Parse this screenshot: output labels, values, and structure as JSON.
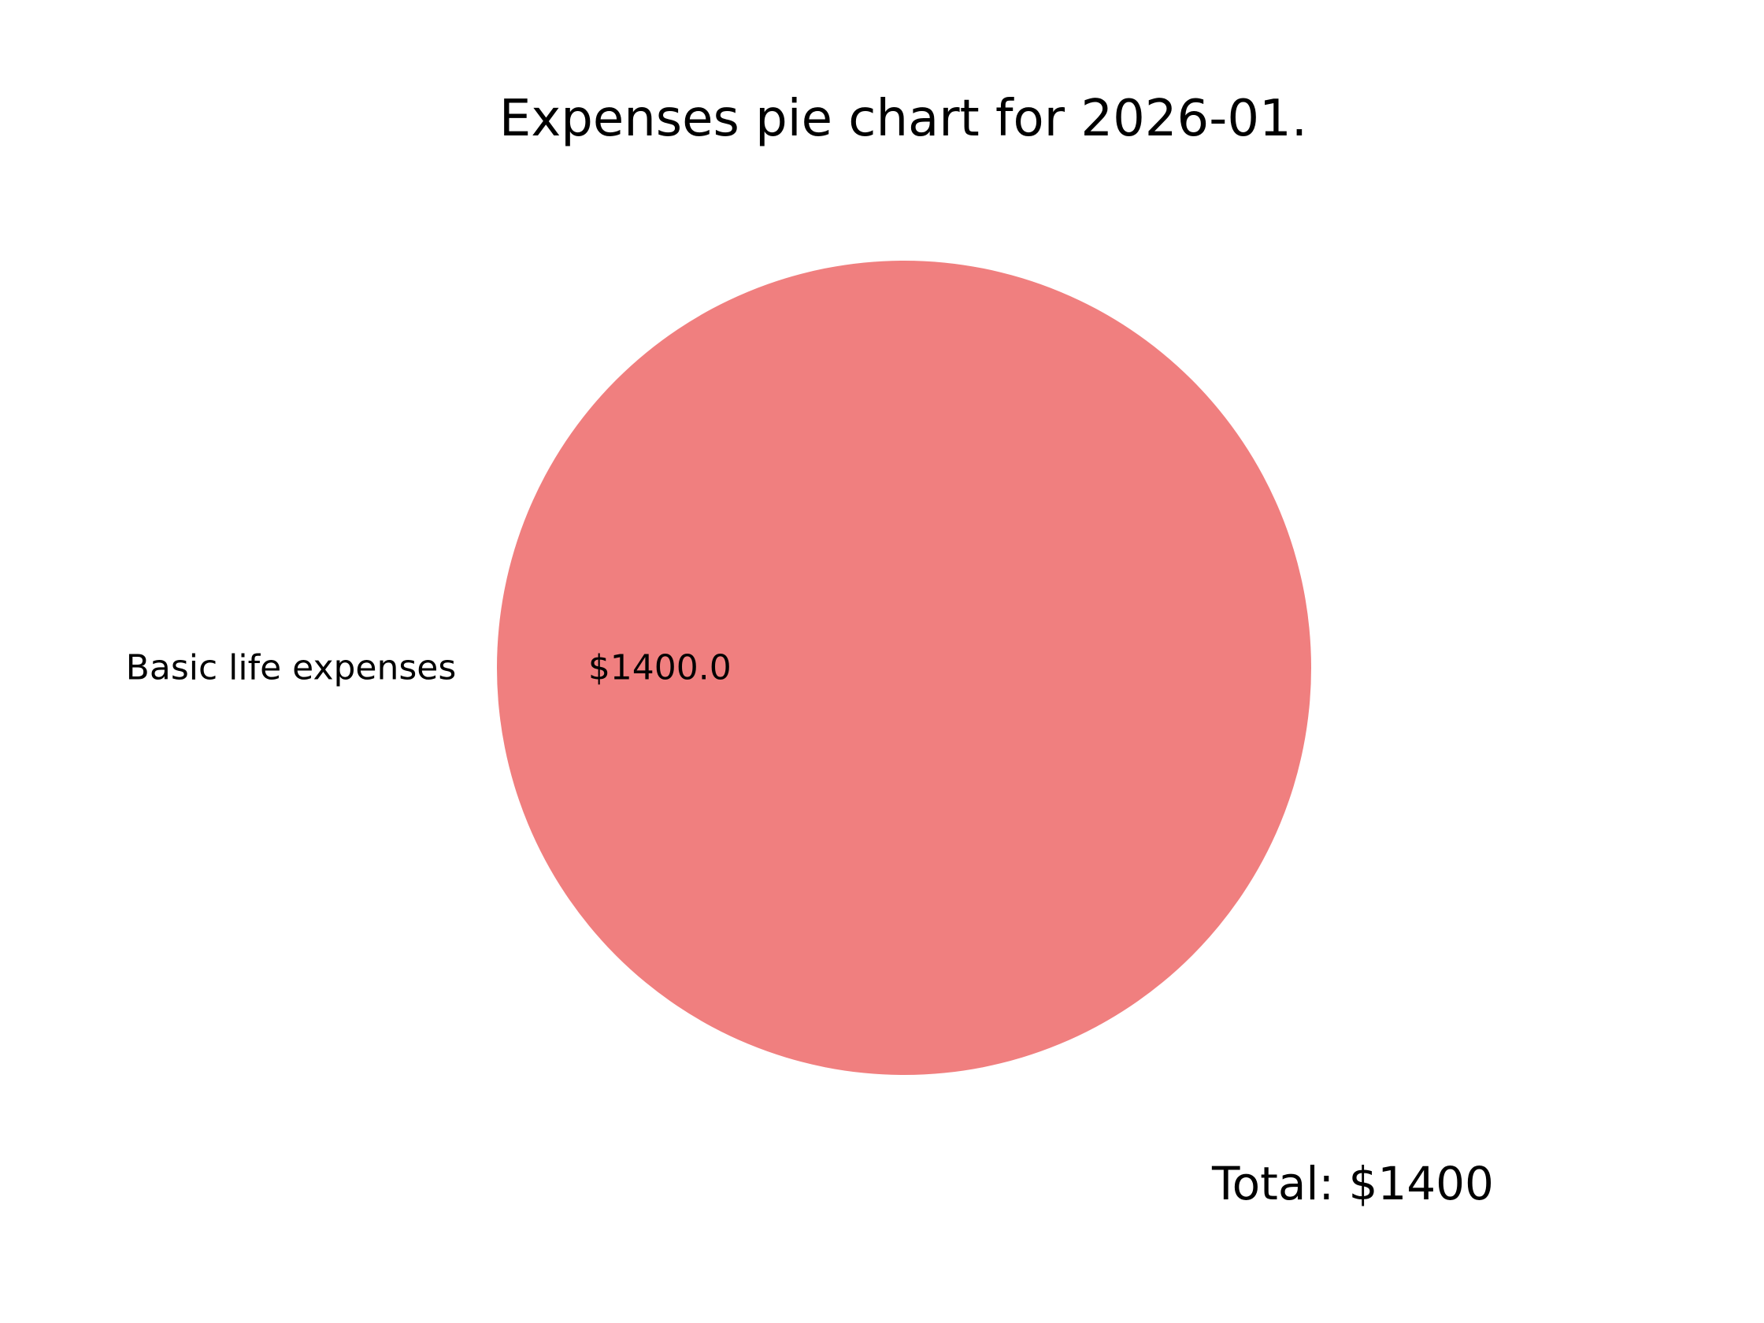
{
  "chart_data": {
    "type": "pie",
    "title": "Expenses pie chart for 2026-01.",
    "categories": [
      "Basic life expenses"
    ],
    "values": [
      1400.0
    ],
    "value_labels": [
      "$1400.0"
    ],
    "colors": [
      "#f07f7f"
    ],
    "total_label": "Total: $1400",
    "legend": "none"
  }
}
